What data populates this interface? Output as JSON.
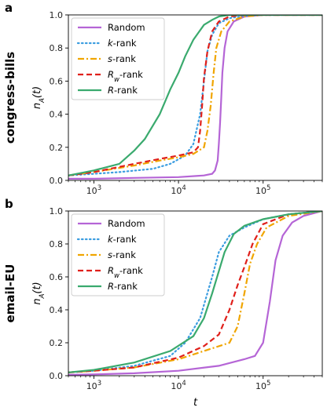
{
  "chart_data": [
    {
      "type": "line",
      "panel_label": "a",
      "row_label": "congress-bills",
      "xlabel": "",
      "ylabel": "n_A(t)",
      "xscale": "log",
      "xlim": [
        500,
        500000
      ],
      "ylim": [
        0,
        1
      ],
      "xticks": [
        "10^3",
        "10^4",
        "10^5"
      ],
      "yticks": [
        "0.0",
        "0.2",
        "0.4",
        "0.6",
        "0.8",
        "1.0"
      ],
      "grid": false,
      "legend_position": "top-left",
      "series": [
        {
          "name": "Random",
          "color": "#b565d6",
          "style": "solid",
          "points": [
            [
              500,
              0.01
            ],
            [
              1000,
              0.01
            ],
            [
              3000,
              0.015
            ],
            [
              10000,
              0.02
            ],
            [
              20000,
              0.03
            ],
            [
              25000,
              0.04
            ],
            [
              27000,
              0.06
            ],
            [
              29000,
              0.12
            ],
            [
              30000,
              0.22
            ],
            [
              31000,
              0.35
            ],
            [
              32000,
              0.5
            ],
            [
              33000,
              0.65
            ],
            [
              35000,
              0.8
            ],
            [
              38000,
              0.9
            ],
            [
              45000,
              0.96
            ],
            [
              60000,
              0.99
            ],
            [
              100000,
              1.0
            ],
            [
              500000,
              1.0
            ]
          ]
        },
        {
          "name": "k-rank",
          "color": "#3b9de0",
          "style": "dotted",
          "points": [
            [
              500,
              0.03
            ],
            [
              1000,
              0.04
            ],
            [
              2000,
              0.05
            ],
            [
              5000,
              0.07
            ],
            [
              8000,
              0.1
            ],
            [
              12000,
              0.15
            ],
            [
              15000,
              0.22
            ],
            [
              18000,
              0.4
            ],
            [
              20000,
              0.6
            ],
            [
              22000,
              0.78
            ],
            [
              25000,
              0.88
            ],
            [
              30000,
              0.95
            ],
            [
              40000,
              0.98
            ],
            [
              60000,
              0.995
            ],
            [
              100000,
              1.0
            ],
            [
              500000,
              1.0
            ]
          ]
        },
        {
          "name": "s-rank",
          "color": "#f0a500",
          "style": "dashdot",
          "points": [
            [
              500,
              0.03
            ],
            [
              1000,
              0.05
            ],
            [
              3000,
              0.09
            ],
            [
              6000,
              0.12
            ],
            [
              10000,
              0.14
            ],
            [
              15000,
              0.16
            ],
            [
              20000,
              0.2
            ],
            [
              22000,
              0.3
            ],
            [
              24000,
              0.45
            ],
            [
              26000,
              0.65
            ],
            [
              28000,
              0.8
            ],
            [
              32000,
              0.9
            ],
            [
              40000,
              0.96
            ],
            [
              60000,
              0.99
            ],
            [
              100000,
              1.0
            ],
            [
              500000,
              1.0
            ]
          ]
        },
        {
          "name": "R_w-rank",
          "color": "#e0201b",
          "style": "dashed",
          "points": [
            [
              500,
              0.03
            ],
            [
              1000,
              0.05
            ],
            [
              3000,
              0.1
            ],
            [
              6000,
              0.13
            ],
            [
              10000,
              0.15
            ],
            [
              15000,
              0.17
            ],
            [
              17000,
              0.2
            ],
            [
              18000,
              0.3
            ],
            [
              19000,
              0.45
            ],
            [
              20000,
              0.62
            ],
            [
              22000,
              0.78
            ],
            [
              25000,
              0.9
            ],
            [
              30000,
              0.96
            ],
            [
              40000,
              0.99
            ],
            [
              60000,
              1.0
            ],
            [
              500000,
              1.0
            ]
          ]
        },
        {
          "name": "R-rank",
          "color": "#3aaa6e",
          "style": "solid",
          "points": [
            [
              500,
              0.03
            ],
            [
              1000,
              0.06
            ],
            [
              2000,
              0.1
            ],
            [
              3000,
              0.18
            ],
            [
              4000,
              0.25
            ],
            [
              6000,
              0.4
            ],
            [
              8000,
              0.55
            ],
            [
              10000,
              0.65
            ],
            [
              12000,
              0.75
            ],
            [
              15000,
              0.85
            ],
            [
              20000,
              0.94
            ],
            [
              25000,
              0.97
            ],
            [
              30000,
              0.99
            ],
            [
              40000,
              1.0
            ],
            [
              500000,
              1.0
            ]
          ]
        }
      ],
      "legend": [
        "Random",
        "k-rank",
        "s-rank",
        "R_w-rank",
        "R-rank"
      ]
    },
    {
      "type": "line",
      "panel_label": "b",
      "row_label": "email-EU",
      "xlabel": "t",
      "ylabel": "n_A(t)",
      "xscale": "log",
      "xlim": [
        500,
        500000
      ],
      "ylim": [
        0,
        1
      ],
      "xticks": [
        "10^3",
        "10^4",
        "10^5"
      ],
      "yticks": [
        "0.0",
        "0.2",
        "0.4",
        "0.6",
        "0.8",
        "1.0"
      ],
      "grid": false,
      "legend_position": "top-left",
      "series": [
        {
          "name": "Random",
          "color": "#b565d6",
          "style": "solid",
          "points": [
            [
              500,
              0.005
            ],
            [
              1000,
              0.008
            ],
            [
              3000,
              0.015
            ],
            [
              10000,
              0.03
            ],
            [
              30000,
              0.06
            ],
            [
              60000,
              0.1
            ],
            [
              80000,
              0.12
            ],
            [
              100000,
              0.2
            ],
            [
              120000,
              0.45
            ],
            [
              140000,
              0.7
            ],
            [
              170000,
              0.85
            ],
            [
              220000,
              0.93
            ],
            [
              300000,
              0.97
            ],
            [
              500000,
              1.0
            ]
          ]
        },
        {
          "name": "k-rank",
          "color": "#3b9de0",
          "style": "dotted",
          "points": [
            [
              500,
              0.02
            ],
            [
              1000,
              0.03
            ],
            [
              3000,
              0.06
            ],
            [
              8000,
              0.12
            ],
            [
              12000,
              0.2
            ],
            [
              18000,
              0.35
            ],
            [
              25000,
              0.6
            ],
            [
              30000,
              0.75
            ],
            [
              40000,
              0.85
            ],
            [
              60000,
              0.9
            ],
            [
              100000,
              0.95
            ],
            [
              200000,
              0.98
            ],
            [
              500000,
              1.0
            ]
          ]
        },
        {
          "name": "s-rank",
          "color": "#f0a500",
          "style": "dashdot",
          "points": [
            [
              500,
              0.02
            ],
            [
              1000,
              0.03
            ],
            [
              3000,
              0.05
            ],
            [
              10000,
              0.1
            ],
            [
              20000,
              0.15
            ],
            [
              40000,
              0.2
            ],
            [
              50000,
              0.3
            ],
            [
              60000,
              0.5
            ],
            [
              70000,
              0.68
            ],
            [
              85000,
              0.8
            ],
            [
              110000,
              0.9
            ],
            [
              200000,
              0.97
            ],
            [
              500000,
              1.0
            ]
          ]
        },
        {
          "name": "R_w-rank",
          "color": "#e0201b",
          "style": "dashed",
          "points": [
            [
              500,
              0.02
            ],
            [
              1000,
              0.03
            ],
            [
              3000,
              0.05
            ],
            [
              10000,
              0.11
            ],
            [
              20000,
              0.18
            ],
            [
              30000,
              0.25
            ],
            [
              40000,
              0.4
            ],
            [
              50000,
              0.55
            ],
            [
              60000,
              0.66
            ],
            [
              75000,
              0.8
            ],
            [
              100000,
              0.92
            ],
            [
              200000,
              0.98
            ],
            [
              500000,
              1.0
            ]
          ]
        },
        {
          "name": "R-rank",
          "color": "#3aaa6e",
          "style": "solid",
          "points": [
            [
              500,
              0.02
            ],
            [
              1000,
              0.035
            ],
            [
              3000,
              0.08
            ],
            [
              8000,
              0.15
            ],
            [
              15000,
              0.24
            ],
            [
              20000,
              0.35
            ],
            [
              25000,
              0.5
            ],
            [
              35000,
              0.75
            ],
            [
              45000,
              0.86
            ],
            [
              60000,
              0.91
            ],
            [
              100000,
              0.95
            ],
            [
              200000,
              0.98
            ],
            [
              500000,
              1.0
            ]
          ]
        }
      ],
      "legend": [
        "Random",
        "k-rank",
        "s-rank",
        "R_w-rank",
        "R-rank"
      ]
    }
  ]
}
